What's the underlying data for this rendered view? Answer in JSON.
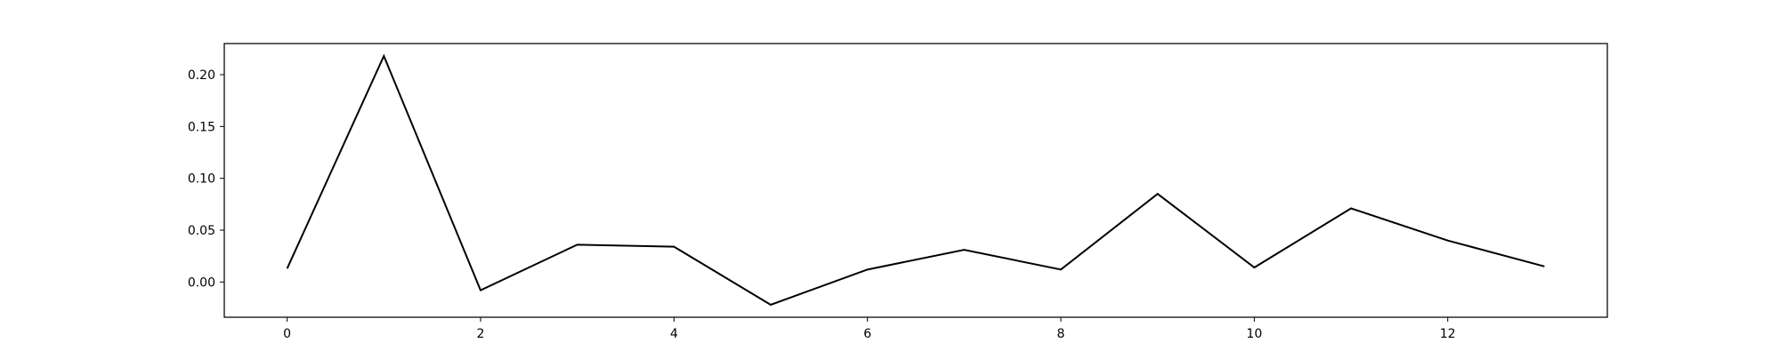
{
  "chart_data": {
    "type": "line",
    "title": "",
    "xlabel": "",
    "ylabel": "",
    "x": [
      0,
      1,
      2,
      3,
      4,
      5,
      6,
      7,
      8,
      9,
      10,
      11,
      12,
      13
    ],
    "series": [
      {
        "values": [
          0.013,
          0.218,
          -0.008,
          0.036,
          0.034,
          -0.022,
          0.012,
          0.031,
          0.012,
          0.085,
          0.014,
          0.071,
          0.04,
          0.015
        ],
        "color": "#000000"
      }
    ],
    "xlim": [
      -0.65,
      13.65
    ],
    "ylim": [
      -0.034,
      0.23
    ],
    "xticks": [
      0,
      2,
      4,
      6,
      8,
      10,
      12
    ],
    "xtick_labels": [
      "0",
      "2",
      "4",
      "6",
      "8",
      "10",
      "12"
    ],
    "yticks": [
      0.0,
      0.05,
      0.1,
      0.15,
      0.2
    ],
    "ytick_labels": [
      "0.00",
      "0.05",
      "0.10",
      "0.15",
      "0.20"
    ],
    "grid": false,
    "legend": "none"
  }
}
